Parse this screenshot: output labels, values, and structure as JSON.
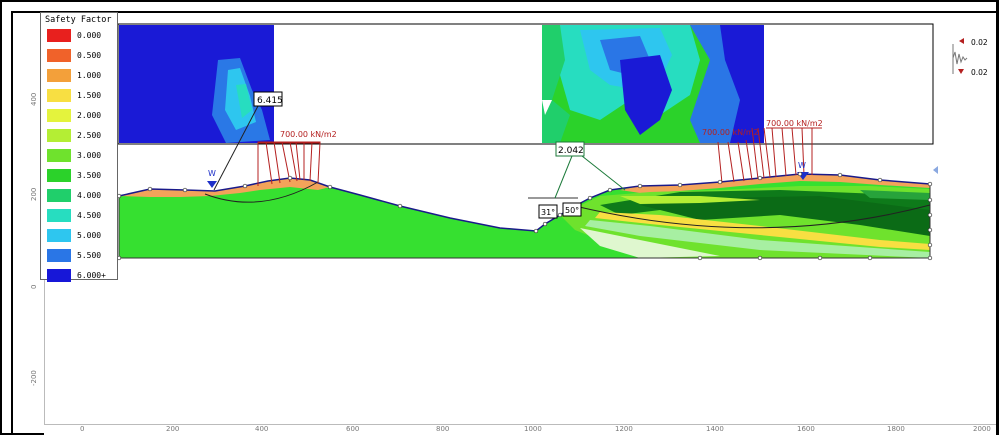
{
  "legend": {
    "title": "Safety Factor",
    "items": [
      {
        "label": "0.000",
        "color": "#e8201e"
      },
      {
        "label": "0.500",
        "color": "#f0622a"
      },
      {
        "label": "1.000",
        "color": "#f3a03a"
      },
      {
        "label": "1.500",
        "color": "#f8df42"
      },
      {
        "label": "2.000",
        "color": "#e4f33d"
      },
      {
        "label": "2.500",
        "color": "#b4ee34"
      },
      {
        "label": "3.000",
        "color": "#6fe22d"
      },
      {
        "label": "3.500",
        "color": "#2bd22a"
      },
      {
        "label": "4.000",
        "color": "#20cf6b"
      },
      {
        "label": "4.500",
        "color": "#27ddc0"
      },
      {
        "label": "5.000",
        "color": "#2ec6ef"
      },
      {
        "label": "5.500",
        "color": "#2a76e6"
      },
      {
        "label": "6.000+",
        "color": "#1717d8"
      }
    ]
  },
  "axis": {
    "x_ticks": [
      "0",
      "200",
      "400",
      "600",
      "800",
      "1000",
      "1200",
      "1400",
      "1600",
      "1800",
      "2000"
    ],
    "y_ticks": [
      "400",
      "200",
      "0",
      "-200"
    ]
  },
  "annotations": {
    "fs_left": "6.415",
    "fs_right": "2.042",
    "load_left": "700.00 kN/m2",
    "load_right_a": "700.00 kN/m2",
    "load_right_b": "700.00 kN/m2",
    "angle_a": "31°",
    "angle_b": "50°",
    "water_left": "W",
    "water_right": "W"
  },
  "seismic": {
    "top_value": "0.02",
    "bottom_value": "0.02"
  }
}
